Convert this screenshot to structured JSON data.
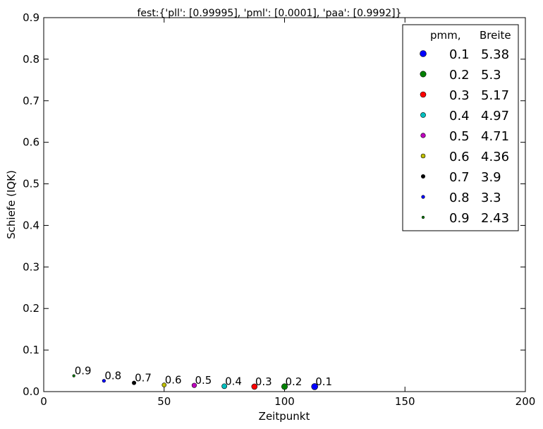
{
  "chart_data": {
    "type": "scatter",
    "title": "fest:{'pll': [0.99995], 'pml': [0.0001], 'paa': [0.9992]}",
    "xlabel": "Zeitpunkt",
    "ylabel": "Schiefe (IQK)",
    "xlim": [
      0,
      200
    ],
    "ylim": [
      0,
      0.9
    ],
    "x_ticks": [
      "0",
      "50",
      "100",
      "150",
      "200"
    ],
    "y_ticks": [
      "0.0",
      "0.1",
      "0.2",
      "0.3",
      "0.4",
      "0.5",
      "0.6",
      "0.7",
      "0.8",
      "0.9"
    ],
    "legend": {
      "position": "top-right",
      "header_pmm": "pmm,",
      "header_breite": "Breite"
    },
    "points": [
      {
        "label": "0.1",
        "pmm": "0.1",
        "breite": "5.38",
        "x": 112.5,
        "y": 0.012,
        "color": "#0000ff"
      },
      {
        "label": "0.2",
        "pmm": "0.2",
        "breite": "5.3",
        "x": 100,
        "y": 0.012,
        "color": "#008000"
      },
      {
        "label": "0.3",
        "pmm": "0.3",
        "breite": "5.17",
        "x": 87.5,
        "y": 0.012,
        "color": "#ff0000"
      },
      {
        "label": "0.4",
        "pmm": "0.4",
        "breite": "4.97",
        "x": 75,
        "y": 0.013,
        "color": "#00bfbf"
      },
      {
        "label": "0.5",
        "pmm": "0.5",
        "breite": "4.71",
        "x": 62.5,
        "y": 0.015,
        "color": "#bf00bf"
      },
      {
        "label": "0.6",
        "pmm": "0.6",
        "breite": "4.36",
        "x": 50,
        "y": 0.016,
        "color": "#bfbf00"
      },
      {
        "label": "0.7",
        "pmm": "0.7",
        "breite": "3.9",
        "x": 37.5,
        "y": 0.021,
        "color": "#000000"
      },
      {
        "label": "0.8",
        "pmm": "0.8",
        "breite": "3.3",
        "x": 25,
        "y": 0.026,
        "color": "#0000ff"
      },
      {
        "label": "0.9",
        "pmm": "0.9",
        "breite": "2.43",
        "x": 12.5,
        "y": 0.038,
        "color": "#008000"
      }
    ]
  }
}
